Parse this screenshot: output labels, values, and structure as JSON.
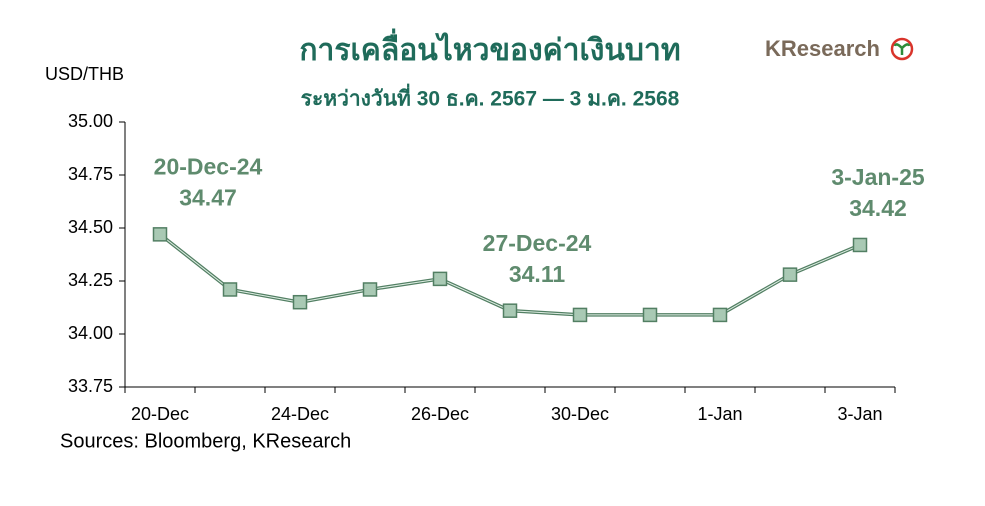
{
  "chart_data": {
    "type": "line",
    "title": "การเคลื่อนไหวของค่าเงินบาท",
    "subtitle": "ระหว่างวันที่ 30 ธ.ค. 2567 — 3 ม.ค. 2568",
    "y_label": "USD/THB",
    "source": "Sources: Bloomberg, KResearch",
    "logo": "KResearch",
    "categories": [
      "20-Dec",
      null,
      "24-Dec",
      null,
      "26-Dec",
      null,
      "30-Dec",
      null,
      "1-Jan",
      null,
      "3-Jan"
    ],
    "series": [
      {
        "name": "USD/THB",
        "color": "#527f63",
        "marker_color": "#a9c9b4",
        "values": [
          34.47,
          34.21,
          34.15,
          34.21,
          34.26,
          34.11,
          34.09,
          34.09,
          34.09,
          34.28,
          34.42
        ],
        "point_labels": [
          "20-Dec-24",
          null,
          null,
          null,
          null,
          "27-Dec-24",
          null,
          null,
          null,
          null,
          "3-Jan-25"
        ]
      }
    ],
    "ylim": [
      33.75,
      35
    ],
    "yticks": [
      {
        "value": 35,
        "label": "35.00"
      },
      34.75,
      {
        "value": 34.5,
        "label": "34.50"
      },
      34.25,
      {
        "value": 34,
        "label": "34.00"
      },
      33.75
    ],
    "grid": false
  }
}
